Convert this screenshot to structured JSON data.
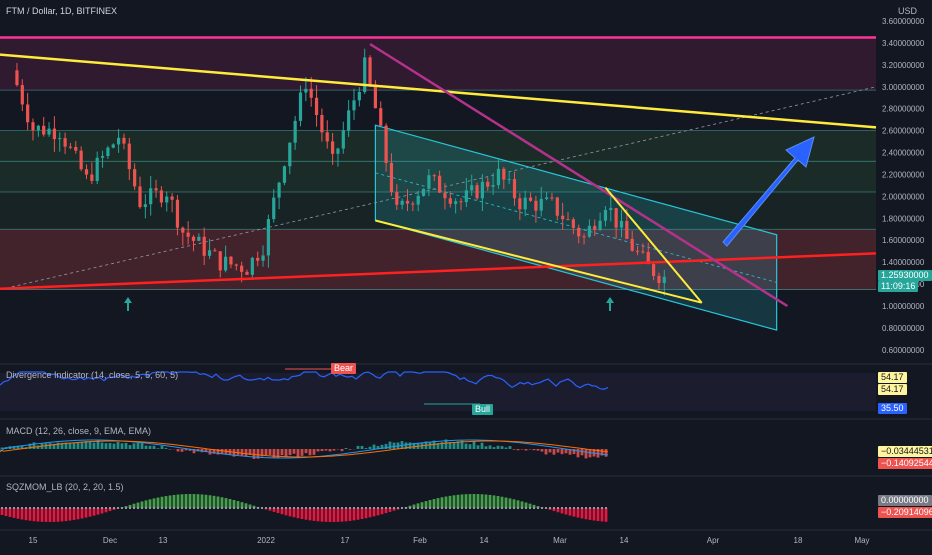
{
  "header": {
    "title": "FTM / Dollar, 1D, BITFINEX",
    "currency": "USD"
  },
  "colors": {
    "up": "#26a69a",
    "down": "#ef5350",
    "magenta": "#ff3399",
    "purple": "#b5318c",
    "yellow": "#ffeb3b",
    "red": "#ff2020",
    "teal": "#26c6da",
    "blue": "#2962ff",
    "macdLine": "#2196f3",
    "signalLine": "#ff6d00"
  },
  "price_axis": {
    "ticks": [
      "3.60000000",
      "3.40000000",
      "3.20000000",
      "3.00000000",
      "2.80000000",
      "2.60000000",
      "2.40000000",
      "2.20000000",
      "2.00000000",
      "1.80000000",
      "1.60000000",
      "1.40000000",
      "1.20000000",
      "1.00000000",
      "0.80000000",
      "0.60000000"
    ],
    "last_price": "1.25930000",
    "countdown": "11:09:16"
  },
  "time_axis": {
    "ticks": [
      "15",
      "Dec",
      "13",
      "2022",
      "17",
      "Feb",
      "14",
      "Mar",
      "14",
      "Apr",
      "18",
      "May"
    ]
  },
  "panels": {
    "divergence": {
      "title": "Divergence Indicator (14, close, 5, 5, 60, 5)",
      "values": [
        "54.17",
        "54.17",
        "35.50"
      ],
      "bear_label": "Bear",
      "bull_label": "Bull"
    },
    "macd": {
      "title": "MACD (12, 26, close, 9, EMA, EMA)",
      "values": [
        "−0.03444531",
        "−0.14092544"
      ]
    },
    "sqzmom": {
      "title": "SQZMOM_LB (20, 2, 20, 1.5)",
      "values": [
        "0.00000000",
        "−0.20914096"
      ]
    }
  },
  "chart_data": {
    "type": "candlestick",
    "title": "FTM / Dollar, 1D, BITFINEX",
    "ylabel": "USD",
    "ylim": [
      0.5,
      3.65
    ],
    "x_ticks": [
      "15",
      "Dec",
      "13",
      "2022",
      "17",
      "Feb",
      "14",
      "Mar",
      "14",
      "Apr",
      "18",
      "May"
    ],
    "series": [
      {
        "name": "FTM / Dollar",
        "approx_close_path": [
          [
            "2021-11-11",
            3.15
          ],
          [
            "2021-11-15",
            2.62
          ],
          [
            "2021-11-20",
            2.6
          ],
          [
            "2021-11-25",
            2.15
          ],
          [
            "2021-12-01",
            2.55
          ],
          [
            "2021-12-05",
            1.95
          ],
          [
            "2021-12-10",
            2.05
          ],
          [
            "2021-12-13",
            1.68
          ],
          [
            "2021-12-20",
            1.4
          ],
          [
            "2021-12-25",
            1.35
          ],
          [
            "2021-12-28",
            1.55
          ],
          [
            "2022-01-01",
            2.35
          ],
          [
            "2022-01-05",
            3.05
          ],
          [
            "2022-01-10",
            2.3
          ],
          [
            "2022-01-16",
            3.18
          ],
          [
            "2022-01-18",
            2.8
          ],
          [
            "2022-01-22",
            1.85
          ],
          [
            "2022-01-28",
            2.15
          ],
          [
            "2022-02-03",
            1.95
          ],
          [
            "2022-02-10",
            2.2
          ],
          [
            "2022-02-14",
            1.95
          ],
          [
            "2022-02-20",
            1.92
          ],
          [
            "2022-02-26",
            1.62
          ],
          [
            "2022-03-02",
            1.95
          ],
          [
            "2022-03-06",
            1.6
          ],
          [
            "2022-03-10",
            1.35
          ],
          [
            "2022-03-13",
            1.26
          ]
        ]
      }
    ],
    "horizontal_levels": [
      3.45,
      2.97,
      2.6,
      2.32,
      2.04,
      1.7,
      1.15
    ],
    "trendlines": [
      {
        "name": "descending resistance (yellow)",
        "points": [
          [
            "2021-10-16",
            3.39
          ],
          [
            "2022-04-30",
            2.63
          ]
        ]
      },
      {
        "name": "ascending support (red)",
        "points": [
          [
            "2021-10-16",
            1.11
          ],
          [
            "2022-05-10",
            1.48
          ]
        ]
      },
      {
        "name": "purple resistance",
        "points": [
          [
            "2022-01-17",
            3.39
          ],
          [
            "2022-04-05",
            1.0
          ]
        ]
      },
      {
        "name": "wedge lower (yellow)",
        "points": [
          [
            "2022-01-18",
            1.78
          ],
          [
            "2022-03-20",
            1.03
          ]
        ]
      }
    ],
    "channel": {
      "upper": [
        [
          "2022-01-18",
          2.65
        ],
        [
          "2022-04-03",
          1.65
        ]
      ],
      "lower": [
        [
          "2022-01-18",
          1.78
        ],
        [
          "2022-04-03",
          0.78
        ]
      ]
    },
    "arrows": [
      "up arrow 2021-12-01",
      "up arrow 2022-03-13",
      "large blue projection arrow up"
    ],
    "indicators": {
      "divergence": {
        "last": 35.5,
        "upper": 54.17,
        "labels": [
          "Bear",
          "Bull"
        ]
      },
      "macd": {
        "macd": -0.03444531,
        "signal": -0.14092544
      },
      "sqzmom": {
        "value": -0.20914096,
        "zero": 0.0
      }
    }
  }
}
